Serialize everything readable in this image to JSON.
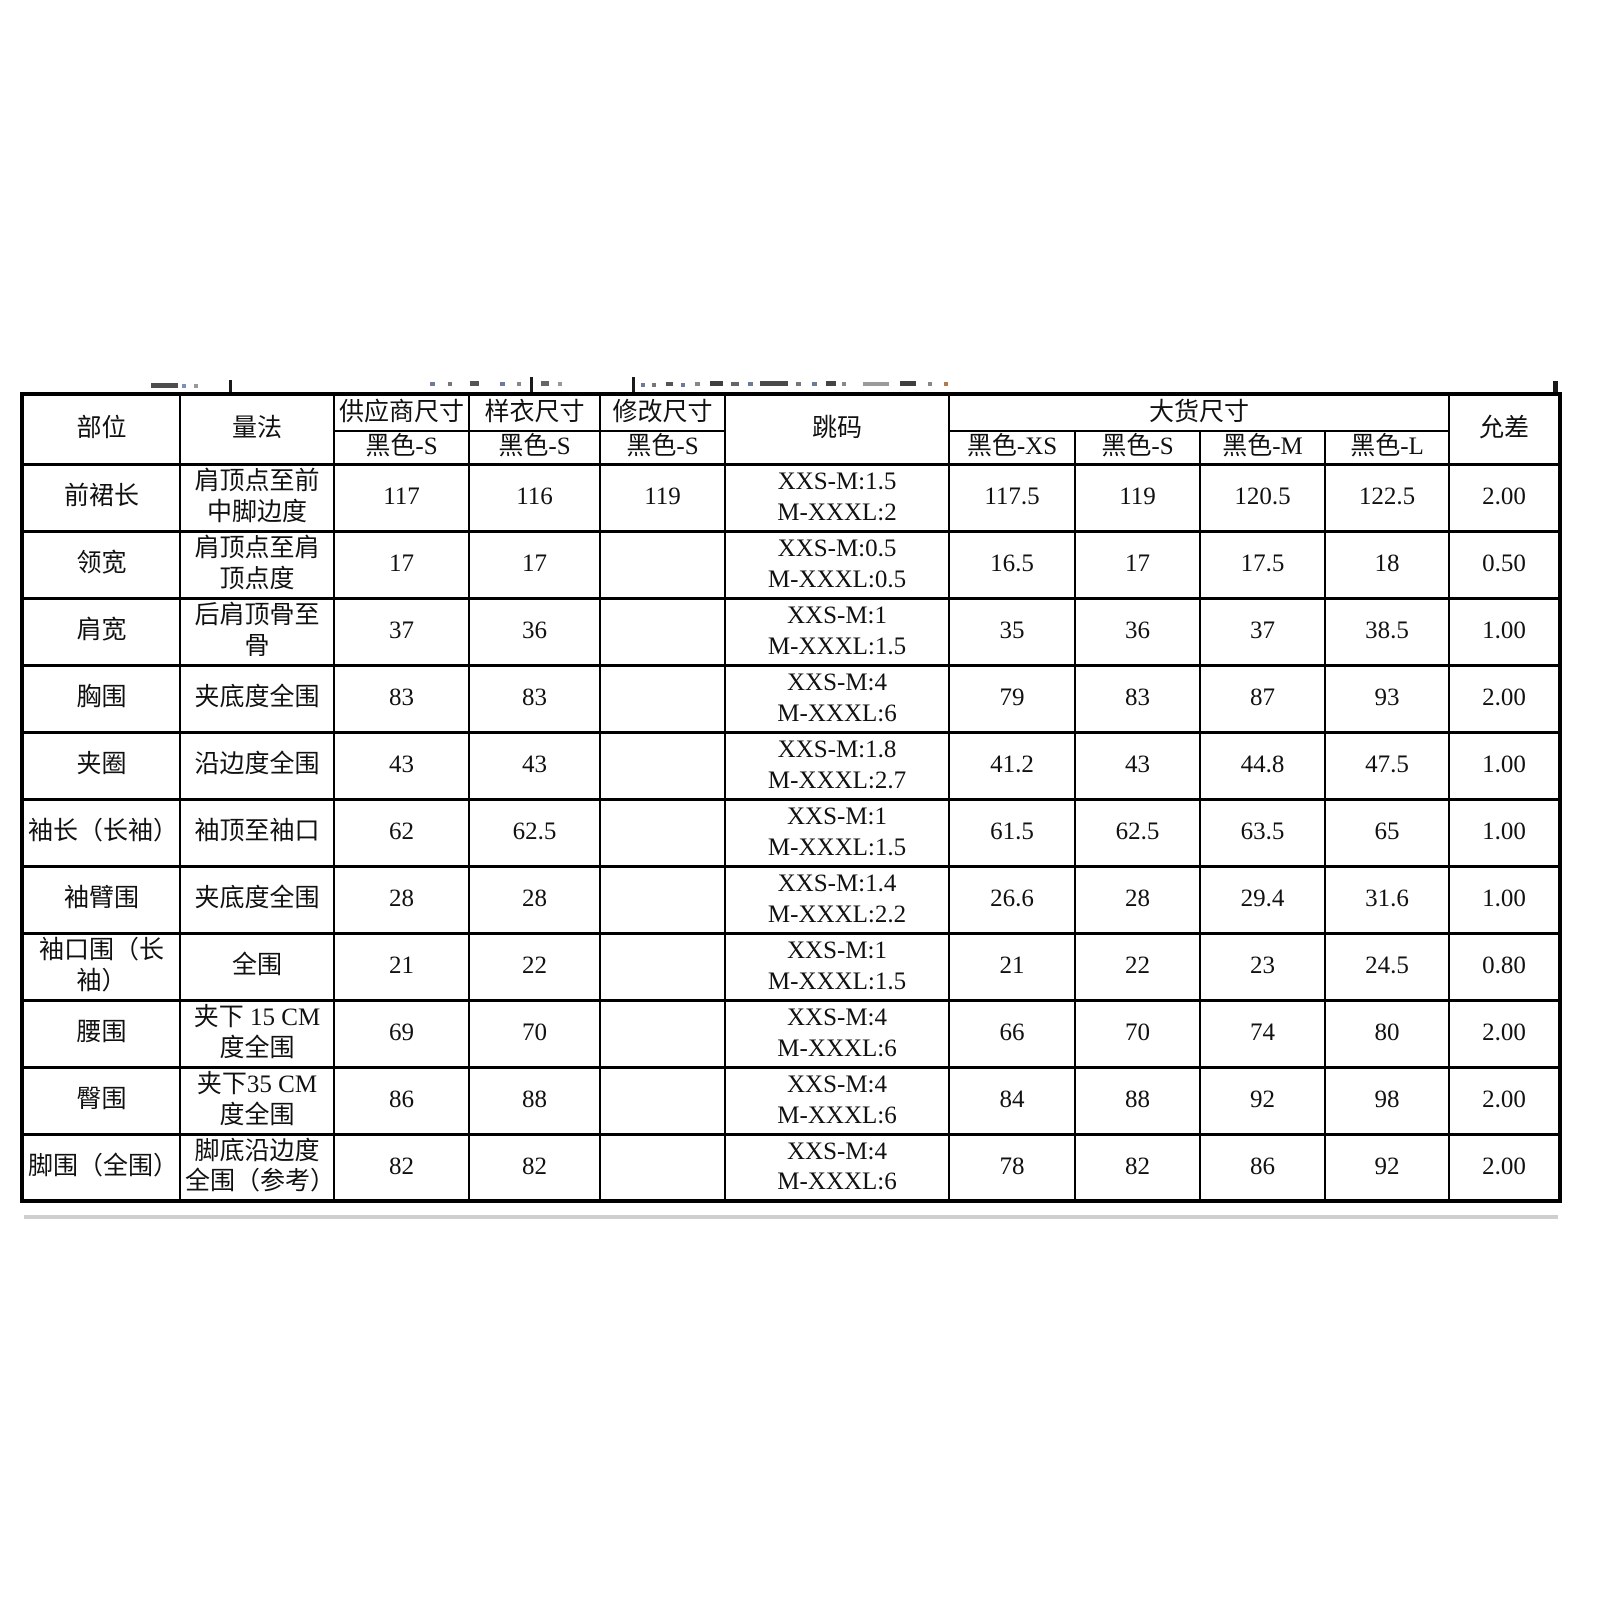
{
  "table": {
    "headers": {
      "part": "部位",
      "method": "量法",
      "supplier": {
        "title": "供应商尺寸",
        "sub": "黑色-S"
      },
      "sample": {
        "title": "样衣尺寸",
        "sub": "黑色-S"
      },
      "revised": {
        "title": "修改尺寸",
        "sub": "黑色-S"
      },
      "grading": "跳码",
      "bulk": {
        "title": "大货尺寸",
        "subs": [
          "黑色-XS",
          "黑色-S",
          "黑色-M",
          "黑色-L"
        ]
      },
      "tolerance": "允差"
    },
    "rows": [
      {
        "part": "前裙长",
        "method": "肩顶点至前中脚边度",
        "supplier": "117",
        "sample": "116",
        "revised": "119",
        "grading": [
          "XXS-M:1.5",
          "M-XXXL:2"
        ],
        "bulk": [
          "117.5",
          "119",
          "120.5",
          "122.5"
        ],
        "tolerance": "2.00"
      },
      {
        "part": "领宽",
        "method": "肩顶点至肩顶点度",
        "supplier": "17",
        "sample": "17",
        "revised": "",
        "grading": [
          "XXS-M:0.5",
          "M-XXXL:0.5"
        ],
        "bulk": [
          "16.5",
          "17",
          "17.5",
          "18"
        ],
        "tolerance": "0.50"
      },
      {
        "part": "肩宽",
        "method": "后肩顶骨至骨",
        "supplier": "37",
        "sample": "36",
        "revised": "",
        "grading": [
          "XXS-M:1",
          "M-XXXL:1.5"
        ],
        "bulk": [
          "35",
          "36",
          "37",
          "38.5"
        ],
        "tolerance": "1.00"
      },
      {
        "part": "胸围",
        "method": "夹底度全围",
        "supplier": "83",
        "sample": "83",
        "revised": "",
        "grading": [
          "XXS-M:4",
          "M-XXXL:6"
        ],
        "bulk": [
          "79",
          "83",
          "87",
          "93"
        ],
        "tolerance": "2.00"
      },
      {
        "part": "夹圈",
        "method": "沿边度全围",
        "supplier": "43",
        "sample": "43",
        "revised": "",
        "grading": [
          "XXS-M:1.8",
          "M-XXXL:2.7"
        ],
        "bulk": [
          "41.2",
          "43",
          "44.8",
          "47.5"
        ],
        "tolerance": "1.00"
      },
      {
        "part": "袖长（长袖）",
        "method": "袖顶至袖口",
        "supplier": "62",
        "sample": "62.5",
        "revised": "",
        "grading": [
          "XXS-M:1",
          "M-XXXL:1.5"
        ],
        "bulk": [
          "61.5",
          "62.5",
          "63.5",
          "65"
        ],
        "tolerance": "1.00"
      },
      {
        "part": "袖臂围",
        "method": "夹底度全围",
        "supplier": "28",
        "sample": "28",
        "revised": "",
        "grading": [
          "XXS-M:1.4",
          "M-XXXL:2.2"
        ],
        "bulk": [
          "26.6",
          "28",
          "29.4",
          "31.6"
        ],
        "tolerance": "1.00"
      },
      {
        "part": "袖口围（长袖）",
        "method": "全围",
        "supplier": "21",
        "sample": "22",
        "revised": "",
        "grading": [
          "XXS-M:1",
          "M-XXXL:1.5"
        ],
        "bulk": [
          "21",
          "22",
          "23",
          "24.5"
        ],
        "tolerance": "0.80"
      },
      {
        "part": "腰围",
        "method": "夹下 15 CM度全围",
        "supplier": "69",
        "sample": "70",
        "revised": "",
        "grading": [
          "XXS-M:4",
          "M-XXXL:6"
        ],
        "bulk": [
          "66",
          "70",
          "74",
          "80"
        ],
        "tolerance": "2.00"
      },
      {
        "part": "臀围",
        "method": "夹下35 CM度全围",
        "supplier": "86",
        "sample": "88",
        "revised": "",
        "grading": [
          "XXS-M:4",
          "M-XXXL:6"
        ],
        "bulk": [
          "84",
          "88",
          "92",
          "98"
        ],
        "tolerance": "2.00"
      },
      {
        "part": "脚围（全围）",
        "method": "脚底沿边度全围（参考）",
        "supplier": "82",
        "sample": "82",
        "revised": "",
        "grading": [
          "XXS-M:4",
          "M-XXXL:6"
        ],
        "bulk": [
          "78",
          "82",
          "86",
          "92"
        ],
        "tolerance": "2.00"
      }
    ]
  }
}
